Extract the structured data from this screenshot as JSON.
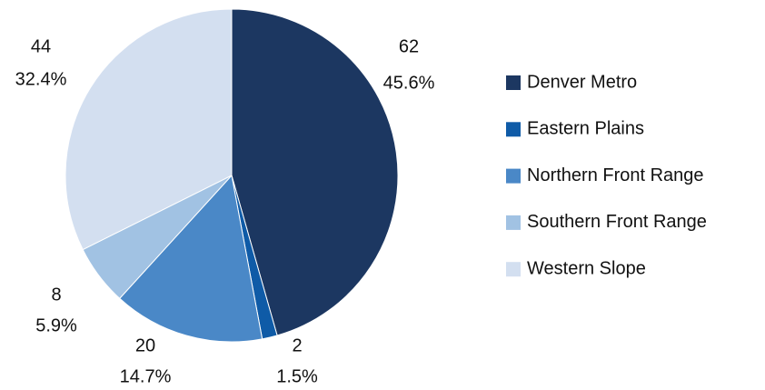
{
  "chart_data": {
    "type": "pie",
    "categories": [
      "Denver Metro",
      "Eastern Plains",
      "Northern Front Range",
      "Southern Front Range",
      "Western Slope"
    ],
    "values": [
      62,
      2,
      20,
      8,
      44
    ],
    "percentages": [
      45.6,
      1.5,
      14.7,
      5.9,
      32.4
    ],
    "percentage_labels": [
      "45.6%",
      "1.5%",
      "14.7%",
      "5.9%",
      "32.4%"
    ],
    "colors": [
      "#1c3761",
      "#0f5ba7",
      "#4a88c7",
      "#a1c2e3",
      "#d3dff0"
    ],
    "legend": "right"
  }
}
